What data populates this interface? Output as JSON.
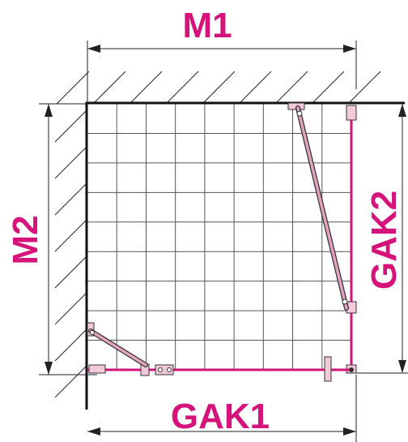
{
  "labels": {
    "m1": "M1",
    "m2": "M2",
    "gak1": "GAK1",
    "gak2": "GAK2"
  },
  "colors": {
    "accent": "#d6137a",
    "line": "#1a1a1a",
    "grid": "#555555",
    "bar": "#e3a3bf",
    "bracket": "#f2c9d9"
  },
  "grid": {
    "columns": 9,
    "rows": 9
  }
}
